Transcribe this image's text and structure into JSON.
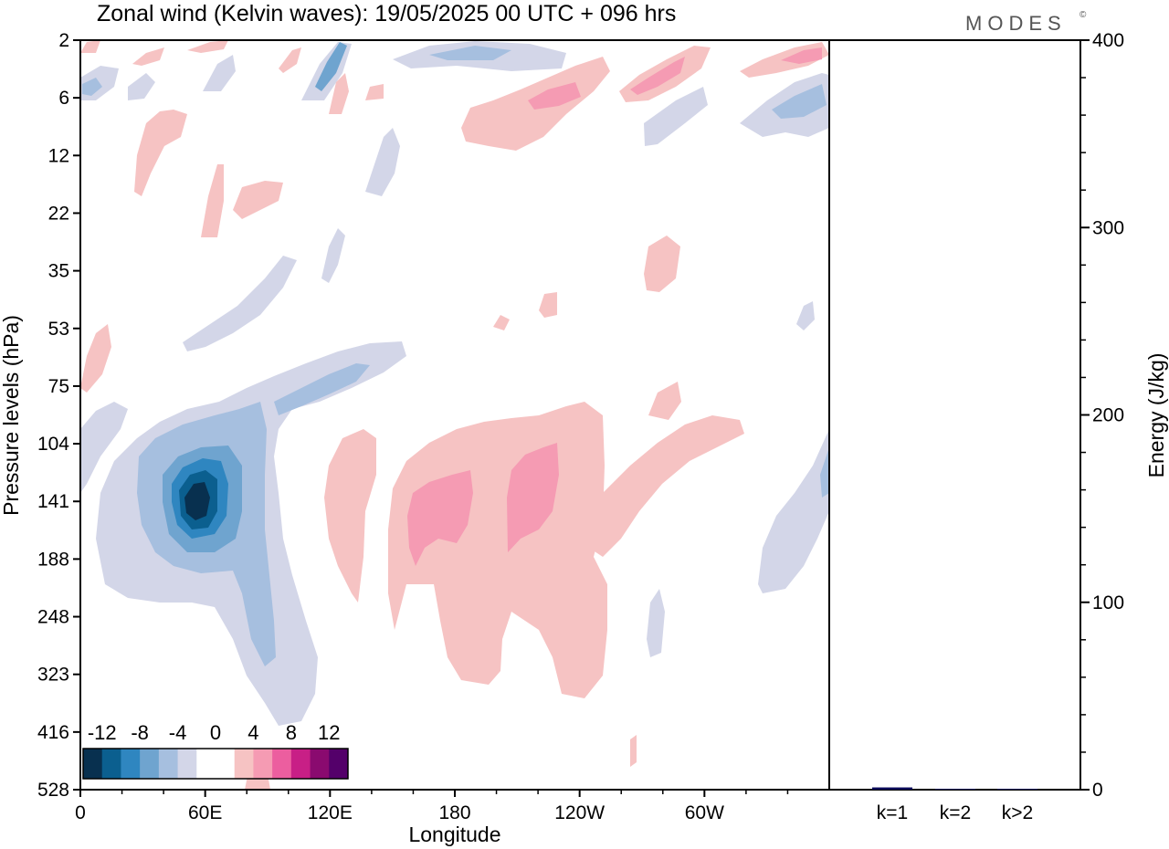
{
  "title": "Zonal wind (Kelvin waves):  19/05/2025  00 UTC  + 096 hrs",
  "brand": "MODES",
  "brand_mark": "©",
  "colors": {
    "neg12": "#08304f",
    "neg10": "#0b5f8f",
    "neg8": "#2f86c0",
    "neg6": "#6fa4cf",
    "neg4": "#a6bfdf",
    "neg2": "#d3d6e8",
    "zero": "#ffffff",
    "pos2": "#f6c3c3",
    "pos4": "#f59bb3",
    "pos6": "#ec5e9f",
    "pos8": "#c81f86",
    "pos10": "#8a0a6f",
    "pos12": "#54006a",
    "energy_bar": "#0a0a5a"
  },
  "chart_data": [
    {
      "type": "heatmap",
      "title": "Zonal wind (Kelvin waves):  19/05/2025  00 UTC  + 096 hrs",
      "xlabel": "Longitude",
      "ylabel": "Pressure levels (hPa)",
      "x_ticks": [
        "0",
        "60E",
        "120E",
        "180",
        "120W",
        "60W"
      ],
      "x_tick_values": [
        0,
        60,
        120,
        180,
        240,
        300
      ],
      "xlim": [
        0,
        360
      ],
      "y_ticks": [
        "2",
        "6",
        "12",
        "22",
        "35",
        "53",
        "75",
        "104",
        "141",
        "188",
        "248",
        "323",
        "416",
        "528"
      ],
      "y_scale": "log-pressure (top 2 hPa, bottom 528 hPa)",
      "colorbar": {
        "labels": [
          "-12",
          "-8",
          "-4",
          "0",
          "4",
          "8",
          "12"
        ],
        "levels": [
          -12,
          -10,
          -8,
          -6,
          -4,
          -2,
          0,
          2,
          4,
          6,
          8,
          10,
          12
        ],
        "position": "bottom-left"
      },
      "features": [
        {
          "sign": "negative",
          "lon_range": [
            20,
            110
          ],
          "p_range": [
            75,
            400
          ],
          "min_value": -12,
          "core_lon": 55,
          "core_p": 141
        },
        {
          "sign": "positive",
          "lon_range": [
            150,
            215
          ],
          "p_range": [
            100,
            320
          ],
          "max_value": 6,
          "core_lon": 165,
          "core_p": 141
        },
        {
          "sign": "positive",
          "lon_range": [
            205,
            240
          ],
          "p_range": [
            110,
            200
          ],
          "max_value": 6,
          "core_lon": 215,
          "core_p": 141
        },
        {
          "sign": "negative",
          "lon_range": [
            320,
            360
          ],
          "p_range": [
            100,
            250
          ],
          "min_value": -4,
          "core_lon": 355,
          "core_p": 120
        },
        {
          "sign": "negative",
          "lon_range": [
            100,
            125
          ],
          "p_range": [
            2,
            8
          ],
          "min_value": -8,
          "core_lon": 118,
          "core_p": 4
        },
        {
          "sign": "positive",
          "lon_range": [
            280,
            300
          ],
          "p_range": [
            3,
            8
          ],
          "max_value": 6,
          "core_lon": 288,
          "core_p": 5
        }
      ]
    },
    {
      "type": "bar",
      "ylabel": "Energy (J/kg)",
      "categories": [
        "k=1",
        "k=2",
        "k>2"
      ],
      "values": [
        1.2,
        0.2,
        0.4
      ],
      "ylim": [
        0,
        400
      ],
      "y_ticks": [
        "0",
        "100",
        "200",
        "300",
        "400"
      ],
      "y_tick_values": [
        0,
        100,
        200,
        300,
        400
      ]
    }
  ]
}
